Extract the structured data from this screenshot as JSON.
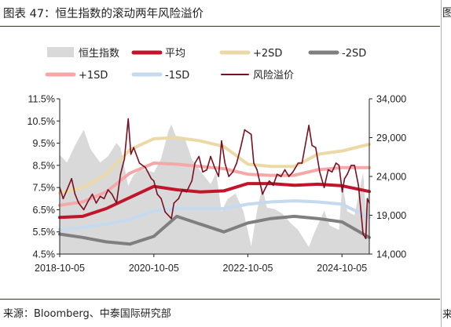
{
  "figure": {
    "title": "图表 47：恒生指数的滚动两年风险溢价",
    "source": "来源：Bloomberg、中泰国际研究部",
    "edge_top": "图",
    "edge_bottom": "来"
  },
  "colors": {
    "hsi_area": "#d9d9d9",
    "mean": "#c0152a",
    "plus2sd": "#ecd9a8",
    "minus2sd": "#7f7f7f",
    "plus1sd": "#f4a9a8",
    "minus1sd": "#c5d9ef",
    "premium": "#7b1020",
    "rule": "#7a1420"
  },
  "chart_data": {
    "type": "line",
    "title": "",
    "xlabel": "",
    "ylabel_left": "",
    "ylabel_right": "",
    "x_ticks": [
      "2018-10-05",
      "2020-10-05",
      "2022-10-05",
      "2024-10-05"
    ],
    "x_range": [
      "2018-10-05",
      "2025-05-05"
    ],
    "y_left": {
      "min": 4.5,
      "max": 11.5,
      "ticks": [
        "4.5%",
        "5.5%",
        "6.5%",
        "7.5%",
        "8.5%",
        "9.5%",
        "10.5%",
        "11.5%"
      ]
    },
    "y_right": {
      "min": 14000,
      "max": 34000,
      "ticks": [
        "14,000",
        "19,000",
        "24,000",
        "29,000",
        "34,000"
      ]
    },
    "legend": [
      {
        "key": "hsi",
        "label": "恒生指数",
        "style": "area"
      },
      {
        "key": "mean",
        "label": "平均",
        "style": "thick"
      },
      {
        "key": "plus2sd",
        "label": "+2SD",
        "style": "thick"
      },
      {
        "key": "minus2sd",
        "label": "-2SD",
        "style": "thick"
      },
      {
        "key": "plus1sd",
        "label": "+1SD",
        "style": "thick"
      },
      {
        "key": "minus1sd",
        "label": "-1SD",
        "style": "thick"
      },
      {
        "key": "premium",
        "label": "风险溢价",
        "style": "thin"
      }
    ],
    "series": [
      {
        "name": "恒生指数",
        "key": "hsi",
        "axis": "right",
        "x": [
          "2018-10-05",
          "2018-12-01",
          "2019-02-01",
          "2019-04-10",
          "2019-06-01",
          "2019-08-15",
          "2019-10-15",
          "2019-12-20",
          "2020-01-20",
          "2020-03-20",
          "2020-05-01",
          "2020-06-15",
          "2020-08-01",
          "2020-10-05",
          "2020-12-01",
          "2021-01-25",
          "2021-02-18",
          "2021-04-01",
          "2021-06-01",
          "2021-07-27",
          "2021-10-01",
          "2021-12-20",
          "2022-02-01",
          "2022-03-15",
          "2022-05-01",
          "2022-07-01",
          "2022-09-01",
          "2022-10-31",
          "2022-12-15",
          "2023-01-27",
          "2023-03-01",
          "2023-05-01",
          "2023-07-01",
          "2023-09-01",
          "2023-10-31",
          "2024-01-22",
          "2024-03-01",
          "2024-05-20",
          "2024-07-01",
          "2024-09-12",
          "2024-10-07",
          "2024-11-15",
          "2025-01-10",
          "2025-03-18",
          "2025-04-08",
          "2025-05-05"
        ],
        "values": [
          26800,
          25800,
          28000,
          30000,
          27500,
          25800,
          26600,
          28300,
          27700,
          22800,
          24200,
          24800,
          24900,
          24500,
          26300,
          29800,
          30700,
          28900,
          29000,
          26200,
          24700,
          23000,
          24500,
          19500,
          21100,
          21800,
          19500,
          15000,
          19600,
          22700,
          20000,
          19800,
          19200,
          18000,
          17100,
          14900,
          16600,
          19600,
          17700,
          17100,
          23100,
          19500,
          19000,
          24500,
          19800,
          22500
        ]
      },
      {
        "name": "平均",
        "key": "mean",
        "axis": "left",
        "x": [
          "2018-10-05",
          "2019-04-01",
          "2019-10-01",
          "2020-04-01",
          "2020-10-05",
          "2021-04-01",
          "2021-10-01",
          "2022-04-01",
          "2022-10-05",
          "2023-04-01",
          "2023-10-01",
          "2024-04-01",
          "2024-10-05",
          "2025-05-05"
        ],
        "values": [
          6.15,
          6.2,
          6.55,
          7.05,
          7.55,
          7.4,
          7.3,
          7.35,
          7.68,
          7.68,
          7.6,
          7.65,
          7.58,
          7.32
        ]
      },
      {
        "name": "+2SD",
        "key": "plus2sd",
        "axis": "left",
        "x": [
          "2018-10-05",
          "2019-04-01",
          "2019-10-01",
          "2020-04-01",
          "2020-10-05",
          "2021-04-01",
          "2021-10-01",
          "2022-04-01",
          "2022-10-05",
          "2023-04-01",
          "2023-10-01",
          "2024-04-01",
          "2024-10-05",
          "2025-05-05"
        ],
        "values": [
          7.25,
          7.5,
          8.1,
          9.2,
          9.7,
          9.75,
          9.6,
          9.35,
          8.55,
          8.45,
          8.45,
          9.0,
          9.15,
          9.45
        ]
      },
      {
        "name": "-2SD",
        "key": "minus2sd",
        "axis": "left",
        "x": [
          "2018-10-05",
          "2019-04-01",
          "2019-10-01",
          "2020-04-01",
          "2020-10-05",
          "2021-04-01",
          "2021-10-01",
          "2022-04-01",
          "2022-10-05",
          "2023-04-01",
          "2023-10-01",
          "2024-04-01",
          "2024-10-05",
          "2025-05-05"
        ],
        "values": [
          5.4,
          5.25,
          5.05,
          4.95,
          5.3,
          6.2,
          5.85,
          5.5,
          5.9,
          6.1,
          6.2,
          6.1,
          5.95,
          5.25
        ]
      },
      {
        "name": "+1SD",
        "key": "plus1sd",
        "axis": "left",
        "x": [
          "2018-10-05",
          "2019-04-01",
          "2019-10-01",
          "2020-04-01",
          "2020-10-05",
          "2021-04-01",
          "2021-10-01",
          "2022-04-01",
          "2022-10-05",
          "2023-04-01",
          "2023-10-01",
          "2024-04-01",
          "2024-10-05",
          "2025-05-05"
        ],
        "values": [
          6.7,
          6.85,
          7.3,
          8.15,
          8.6,
          8.55,
          8.45,
          8.35,
          8.1,
          8.05,
          8.05,
          8.3,
          8.4,
          8.4
        ]
      },
      {
        "name": "-1SD",
        "key": "minus1sd",
        "axis": "left",
        "x": [
          "2018-10-05",
          "2019-04-01",
          "2019-10-01",
          "2020-04-01",
          "2020-10-05",
          "2021-04-01",
          "2021-10-01",
          "2022-04-01",
          "2022-10-05",
          "2023-04-01",
          "2023-10-01",
          "2024-04-01",
          "2024-10-05",
          "2025-05-05"
        ],
        "values": [
          5.6,
          5.7,
          5.85,
          6.05,
          6.45,
          6.55,
          6.55,
          6.55,
          6.75,
          6.85,
          6.9,
          6.85,
          6.75,
          6.15
        ]
      },
      {
        "name": "风险溢价",
        "key": "premium",
        "axis": "left",
        "x": [
          "2018-10-05",
          "2018-11-01",
          "2018-12-01",
          "2019-01-05",
          "2019-02-01",
          "2019-03-01",
          "2019-04-10",
          "2019-05-15",
          "2019-06-15",
          "2019-07-15",
          "2019-08-15",
          "2019-09-15",
          "2019-10-15",
          "2019-11-15",
          "2019-12-20",
          "2020-01-20",
          "2020-02-20",
          "2020-03-20",
          "2020-04-10",
          "2020-05-01",
          "2020-06-15",
          "2020-08-01",
          "2020-09-15",
          "2020-10-05",
          "2020-11-01",
          "2020-12-01",
          "2021-01-01",
          "2021-02-18",
          "2021-03-10",
          "2021-04-15",
          "2021-05-15",
          "2021-06-15",
          "2021-07-27",
          "2021-08-20",
          "2021-09-20",
          "2021-10-20",
          "2021-11-20",
          "2021-12-20",
          "2022-01-20",
          "2022-02-20",
          "2022-03-15",
          "2022-04-10",
          "2022-05-10",
          "2022-06-10",
          "2022-07-10",
          "2022-08-10",
          "2022-09-10",
          "2022-10-31",
          "2022-11-20",
          "2022-12-15",
          "2023-01-27",
          "2023-02-20",
          "2023-03-20",
          "2023-04-20",
          "2023-05-20",
          "2023-06-20",
          "2023-07-20",
          "2023-08-20",
          "2023-09-20",
          "2023-10-31",
          "2023-11-30",
          "2024-01-22",
          "2024-02-15",
          "2024-03-15",
          "2024-04-15",
          "2024-05-20",
          "2024-06-20",
          "2024-07-20",
          "2024-08-20",
          "2024-09-12",
          "2024-10-07",
          "2024-10-25",
          "2024-11-15",
          "2024-12-15",
          "2025-01-10",
          "2025-02-10",
          "2025-03-05",
          "2025-03-18",
          "2025-04-08",
          "2025-04-20",
          "2025-05-05"
        ],
        "values": [
          7.5,
          7.0,
          7.4,
          7.9,
          7.2,
          6.8,
          6.5,
          6.9,
          7.2,
          6.8,
          7.1,
          7.0,
          7.4,
          7.2,
          6.8,
          8.1,
          8.8,
          10.6,
          9.0,
          9.3,
          8.6,
          8.4,
          7.9,
          7.8,
          7.2,
          7.0,
          6.4,
          6.1,
          6.8,
          7.0,
          7.4,
          7.3,
          7.8,
          8.6,
          8.9,
          8.2,
          8.3,
          8.9,
          8.4,
          8.0,
          9.6,
          8.6,
          8.0,
          8.2,
          8.6,
          9.3,
          10.1,
          9.9,
          8.6,
          8.3,
          7.2,
          7.5,
          7.8,
          7.6,
          8.1,
          8.0,
          8.3,
          8.0,
          8.2,
          8.6,
          8.6,
          10.3,
          9.4,
          9.3,
          8.2,
          7.5,
          8.3,
          8.2,
          8.6,
          8.5,
          7.3,
          7.9,
          8.1,
          8.5,
          8.5,
          7.6,
          6.2,
          5.4,
          5.2,
          7.0,
          6.8
        ]
      }
    ]
  }
}
